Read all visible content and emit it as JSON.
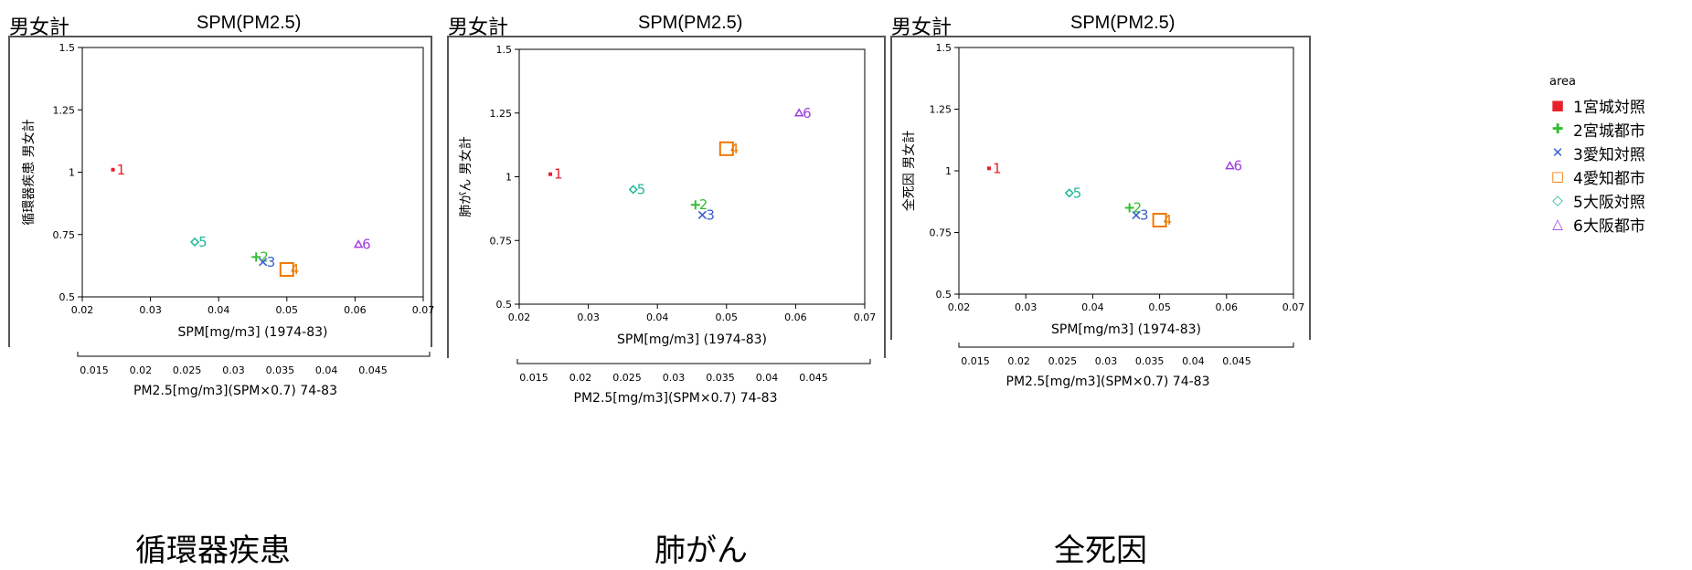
{
  "charts": [
    {
      "panel_header": "男女計",
      "panel_title": "SPM(PM2.5)",
      "caption": "循環器疾患",
      "chart_data": {
        "type": "scatter",
        "title": "SPM(PM2.5)",
        "xlabel": "SPM[mg/m3] (1974-83)",
        "ylabel": "循環器疾患 男女計",
        "x2label": "PM2.5[mg/m3](SPM×0.7) 74-83",
        "xlim": [
          0.02,
          0.07
        ],
        "ylim": [
          0.5,
          1.5
        ],
        "x_ticks": [
          "0.02",
          "0.03",
          "0.04",
          "0.05",
          "0.06",
          "0.07"
        ],
        "y_ticks": [
          "0.5",
          "0.75",
          "1",
          "1.25",
          "1.5"
        ],
        "x2_ticks": [
          "0.015",
          "0.02",
          "0.025",
          "0.03",
          "0.035",
          "0.04",
          "0.045"
        ],
        "points": [
          {
            "area": 1,
            "label": "1",
            "x": 0.0245,
            "y": 1.01
          },
          {
            "area": 2,
            "label": "2",
            "x": 0.0455,
            "y": 0.66
          },
          {
            "area": 3,
            "label": "3",
            "x": 0.0465,
            "y": 0.64
          },
          {
            "area": 4,
            "label": "4",
            "x": 0.05,
            "y": 0.61
          },
          {
            "area": 5,
            "label": "5",
            "x": 0.0365,
            "y": 0.72
          },
          {
            "area": 6,
            "label": "6",
            "x": 0.0605,
            "y": 0.71
          }
        ]
      }
    },
    {
      "panel_header": "男女計",
      "panel_title": "SPM(PM2.5)",
      "caption": "肺がん",
      "chart_data": {
        "type": "scatter",
        "title": "SPM(PM2.5)",
        "xlabel": "SPM[mg/m3] (1974-83)",
        "ylabel": "肺がん 男女計",
        "x2label": "PM2.5[mg/m3](SPM×0.7) 74-83",
        "xlim": [
          0.02,
          0.07
        ],
        "ylim": [
          0.5,
          1.5
        ],
        "x_ticks": [
          "0.02",
          "0.03",
          "0.04",
          "0.05",
          "0.06",
          "0.07"
        ],
        "y_ticks": [
          "0.5",
          "0.75",
          "1",
          "1.25",
          "1.5"
        ],
        "x2_ticks": [
          "0.015",
          "0.02",
          "0.025",
          "0.03",
          "0.035",
          "0.04",
          "0.045"
        ],
        "points": [
          {
            "area": 1,
            "label": "1",
            "x": 0.0245,
            "y": 1.01
          },
          {
            "area": 2,
            "label": "2",
            "x": 0.0455,
            "y": 0.89
          },
          {
            "area": 3,
            "label": "3",
            "x": 0.0465,
            "y": 0.85
          },
          {
            "area": 4,
            "label": "4",
            "x": 0.05,
            "y": 1.11
          },
          {
            "area": 5,
            "label": "5",
            "x": 0.0365,
            "y": 0.95
          },
          {
            "area": 6,
            "label": "6",
            "x": 0.0605,
            "y": 1.25
          }
        ]
      }
    },
    {
      "panel_header": "男女計",
      "panel_title": "SPM(PM2.5)",
      "caption": "全死因",
      "chart_data": {
        "type": "scatter",
        "title": "SPM(PM2.5)",
        "xlabel": "SPM[mg/m3] (1974-83)",
        "ylabel": "全死因 男女計",
        "x2label": "PM2.5[mg/m3](SPM×0.7) 74-83",
        "xlim": [
          0.02,
          0.07
        ],
        "ylim": [
          0.5,
          1.5
        ],
        "x_ticks": [
          "0.02",
          "0.03",
          "0.04",
          "0.05",
          "0.06",
          "0.07"
        ],
        "y_ticks": [
          "0.5",
          "0.75",
          "1",
          "1.25",
          "1.5"
        ],
        "x2_ticks": [
          "0.015",
          "0.02",
          "0.025",
          "0.03",
          "0.035",
          "0.04",
          "0.045"
        ],
        "points": [
          {
            "area": 1,
            "label": "1",
            "x": 0.0245,
            "y": 1.01
          },
          {
            "area": 2,
            "label": "2",
            "x": 0.0455,
            "y": 0.85
          },
          {
            "area": 3,
            "label": "3",
            "x": 0.0465,
            "y": 0.82
          },
          {
            "area": 4,
            "label": "4",
            "x": 0.05,
            "y": 0.8
          },
          {
            "area": 5,
            "label": "5",
            "x": 0.0365,
            "y": 0.91
          },
          {
            "area": 6,
            "label": "6",
            "x": 0.0605,
            "y": 1.02
          }
        ]
      }
    }
  ],
  "legend": {
    "title": "area",
    "items": [
      {
        "area": 1,
        "label": "1宮城対照",
        "symbol": "■",
        "color": "#e8202a"
      },
      {
        "area": 2,
        "label": "2宮城都市",
        "symbol": "✚",
        "color": "#2fbf2f"
      },
      {
        "area": 3,
        "label": "3愛知対照",
        "symbol": "✕",
        "color": "#3a5fcd"
      },
      {
        "area": 4,
        "label": "4愛知都市",
        "symbol": "□",
        "color": "#f07800"
      },
      {
        "area": 5,
        "label": "5大阪対照",
        "symbol": "◇",
        "color": "#20b898"
      },
      {
        "area": 6,
        "label": "6大阪都市",
        "symbol": "△",
        "color": "#a040e0"
      }
    ]
  }
}
